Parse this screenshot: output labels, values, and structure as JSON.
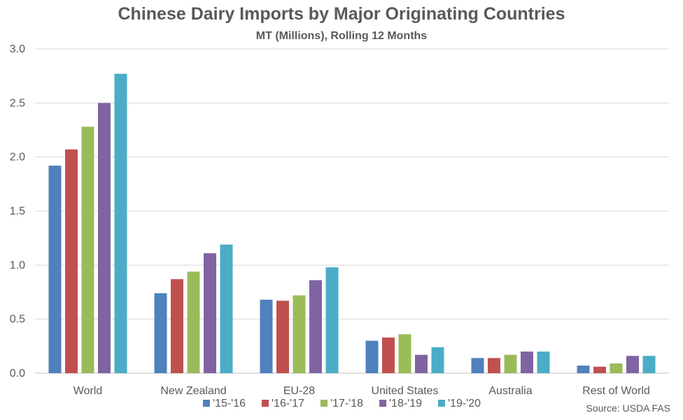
{
  "chart_data": {
    "type": "bar",
    "title": "Chinese Dairy Imports by Major Originating Countries",
    "subtitle": "MT (Millions), Rolling 12 Months",
    "source": "Source: USDA FAS",
    "categories": [
      "World",
      "New Zealand",
      "EU-28",
      "United States",
      "Australia",
      "Rest of World"
    ],
    "ylim": [
      0,
      3.0
    ],
    "yticks": [
      "0.0",
      "0.5",
      "1.0",
      "1.5",
      "2.0",
      "2.5",
      "3.0"
    ],
    "grid": true,
    "legend_position": "bottom",
    "series": [
      {
        "name": "'15-'16",
        "color": "#4F81BD",
        "values": [
          1.92,
          0.74,
          0.68,
          0.3,
          0.14,
          0.07
        ]
      },
      {
        "name": "'16-'17",
        "color": "#C0504D",
        "values": [
          2.07,
          0.87,
          0.67,
          0.33,
          0.14,
          0.06
        ]
      },
      {
        "name": "'17-'18",
        "color": "#9BBB59",
        "values": [
          2.28,
          0.94,
          0.72,
          0.36,
          0.17,
          0.09
        ]
      },
      {
        "name": "'18-'19",
        "color": "#8064A2",
        "values": [
          2.5,
          1.11,
          0.86,
          0.17,
          0.2,
          0.16
        ]
      },
      {
        "name": "'19-'20",
        "color": "#4BACC6",
        "values": [
          2.77,
          1.19,
          0.98,
          0.24,
          0.2,
          0.16
        ]
      }
    ]
  }
}
